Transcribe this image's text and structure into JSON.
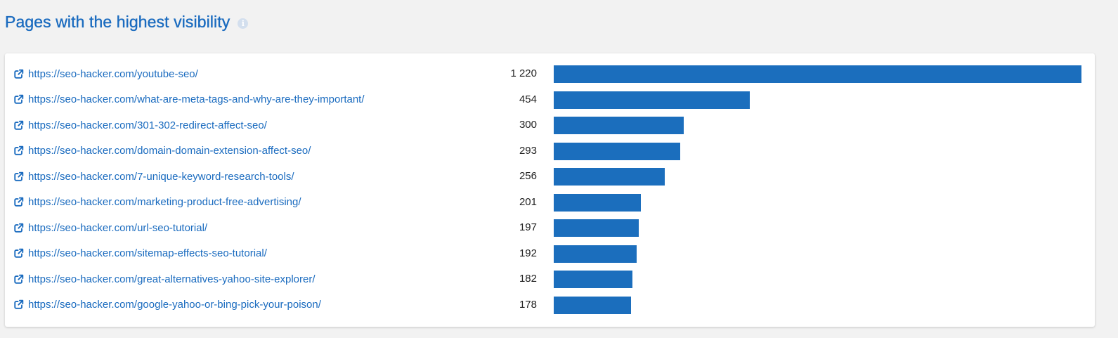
{
  "header": {
    "title": "Pages with the highest visibility",
    "info_icon": "info-icon"
  },
  "colors": {
    "accent": "#1a6bbf",
    "bar": "#1b6ebd",
    "background": "#f2f2f2",
    "card": "#ffffff"
  },
  "max_value": 1220,
  "rows": [
    {
      "url": "https://seo-hacker.com/youtube-seo/",
      "value_label": "1 220",
      "value": 1220
    },
    {
      "url": "https://seo-hacker.com/what-are-meta-tags-and-why-are-they-important/",
      "value_label": "454",
      "value": 454
    },
    {
      "url": "https://seo-hacker.com/301-302-redirect-affect-seo/",
      "value_label": "300",
      "value": 300
    },
    {
      "url": "https://seo-hacker.com/domain-domain-extension-affect-seo/",
      "value_label": "293",
      "value": 293
    },
    {
      "url": "https://seo-hacker.com/7-unique-keyword-research-tools/",
      "value_label": "256",
      "value": 256
    },
    {
      "url": "https://seo-hacker.com/marketing-product-free-advertising/",
      "value_label": "201",
      "value": 201
    },
    {
      "url": "https://seo-hacker.com/url-seo-tutorial/",
      "value_label": "197",
      "value": 197
    },
    {
      "url": "https://seo-hacker.com/sitemap-effects-seo-tutorial/",
      "value_label": "192",
      "value": 192
    },
    {
      "url": "https://seo-hacker.com/great-alternatives-yahoo-site-explorer/",
      "value_label": "182",
      "value": 182
    },
    {
      "url": "https://seo-hacker.com/google-yahoo-or-bing-pick-your-poison/",
      "value_label": "178",
      "value": 178
    }
  ]
}
